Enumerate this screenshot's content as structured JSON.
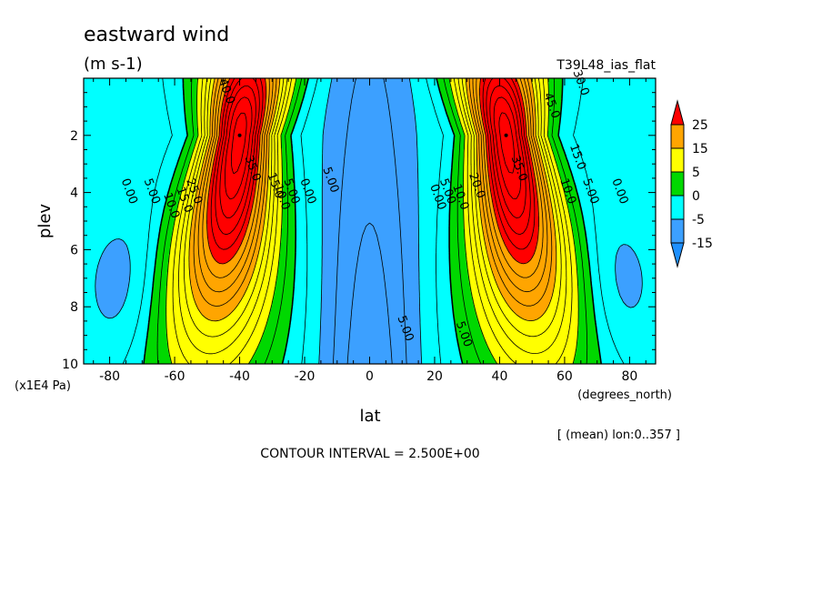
{
  "chart_data": {
    "type": "heatmap",
    "title": "eastward wind",
    "units": "(m s-1)",
    "experiment": "T39L48_ias_flat",
    "xlabel": "lat",
    "xunits": "(degrees_north)",
    "ylabel": "plev",
    "yunits": "(x1E4 Pa)",
    "mean_note": "[ (mean) lon:0..357 ]",
    "contour_interval_text": "CONTOUR INTERVAL = 2.500E+00",
    "xlim": [
      -88,
      88
    ],
    "ylim": [
      0,
      10
    ],
    "y_inverted": true,
    "x_ticks": [
      -80,
      -60,
      -40,
      -20,
      0,
      20,
      40,
      60,
      80
    ],
    "x_tick_labels": [
      "-80",
      "-60",
      "-40",
      "-20",
      "0",
      "20",
      "40",
      "60",
      "80"
    ],
    "y_ticks": [
      2,
      4,
      6,
      8,
      10
    ],
    "y_tick_labels": [
      "2",
      "4",
      "6",
      "8",
      "10"
    ],
    "contour_interval": 2.5,
    "fill_levels": [
      -15,
      -5,
      0,
      5,
      15,
      25
    ],
    "fill_colors": [
      "#1e90ff",
      "#3ca0ff",
      "#00ffff",
      "#00d800",
      "#ffff00",
      "#ffa500",
      "#ff0000"
    ],
    "colorbar_labels": [
      "25",
      "15",
      "5",
      "0",
      "-5",
      "-15"
    ],
    "jet_maxima": [
      {
        "lat": -40,
        "plev": 2.0,
        "value": 38
      },
      {
        "lat": 42,
        "plev": 2.0,
        "value": 38
      }
    ],
    "contour_labels": [
      {
        "text": "35.0",
        "lat": -37,
        "plev": 3.2
      },
      {
        "text": "35.0",
        "lat": 45,
        "plev": 3.2
      },
      {
        "text": "40.0",
        "lat": -45,
        "plev": 0.5
      },
      {
        "text": "45.0",
        "lat": 55,
        "plev": 1.0
      },
      {
        "text": "30.0",
        "lat": 64,
        "plev": 0.2
      },
      {
        "text": "25.0",
        "lat": -55,
        "plev": 4.0
      },
      {
        "text": "15.0",
        "lat": -58,
        "plev": 4.3
      },
      {
        "text": "10.0",
        "lat": -62,
        "plev": 4.5
      },
      {
        "text": "5.00",
        "lat": -68,
        "plev": 4.0
      },
      {
        "text": "0.00",
        "lat": -75,
        "plev": 4.0
      },
      {
        "text": "15.0",
        "lat": -30,
        "plev": 3.8
      },
      {
        "text": "10.0",
        "lat": -28,
        "plev": 4.2
      },
      {
        "text": "5.00",
        "lat": -25,
        "plev": 4.0
      },
      {
        "text": "0.00",
        "lat": -20,
        "plev": 4.0
      },
      {
        "text": "5.00",
        "lat": -13,
        "plev": 3.6
      },
      {
        "text": "0.00",
        "lat": 20,
        "plev": 4.2
      },
      {
        "text": "5.00",
        "lat": 23,
        "plev": 4.0
      },
      {
        "text": "10.0",
        "lat": 27,
        "plev": 4.2
      },
      {
        "text": "20.0",
        "lat": 32,
        "plev": 3.8
      },
      {
        "text": "10.0",
        "lat": 60,
        "plev": 4.0
      },
      {
        "text": "5.00",
        "lat": 67,
        "plev": 4.0
      },
      {
        "text": "0.00",
        "lat": 76,
        "plev": 4.0
      },
      {
        "text": "15.0",
        "lat": 63,
        "plev": 2.8
      },
      {
        "text": "5.00",
        "lat": 10,
        "plev": 8.8
      },
      {
        "text": "5.00",
        "lat": 28,
        "plev": 9.0
      }
    ]
  }
}
